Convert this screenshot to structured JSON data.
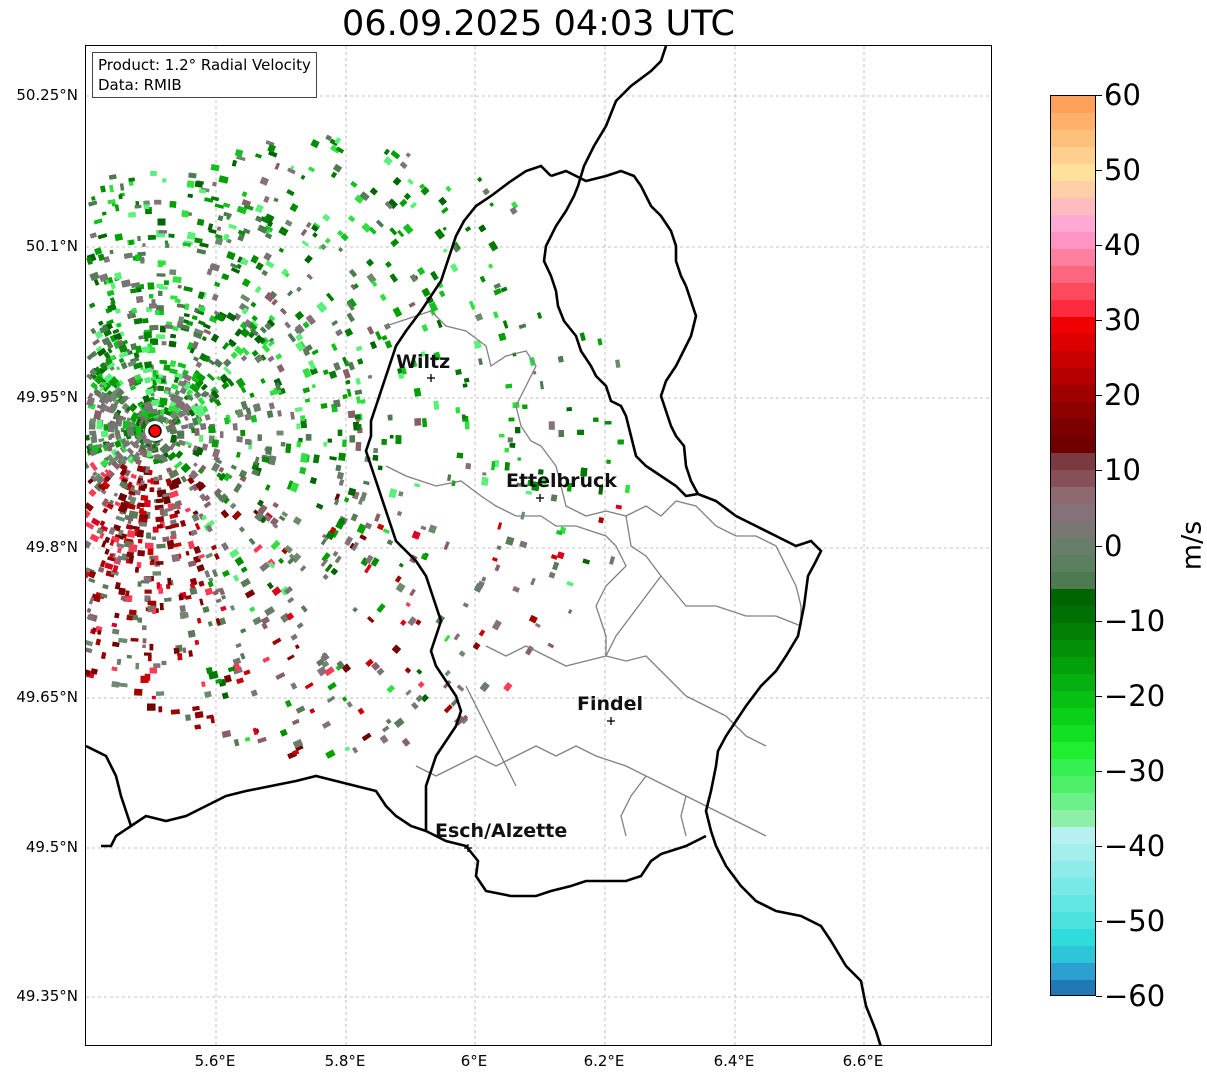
{
  "title": "06.09.2025 04:03 UTC",
  "info_box": {
    "product": "Product: 1.2° Radial Velocity",
    "data": "Data: RMIB"
  },
  "latitude_labels": [
    "50.25°N",
    "50.1°N",
    "49.95°N",
    "49.8°N",
    "49.65°N",
    "49.5°N",
    "49.35°N"
  ],
  "longitude_labels": [
    "5.6°E",
    "5.8°E",
    "6°E",
    "6.2°E",
    "6.4°E",
    "6.6°E"
  ],
  "cities": [
    {
      "name": "Wiltz"
    },
    {
      "name": "Ettelbruck"
    },
    {
      "name": "Findel"
    },
    {
      "name": "Esch/Alzette"
    }
  ],
  "colorbar": {
    "unit": "m/s",
    "ticks": [
      "60",
      "50",
      "40",
      "30",
      "20",
      "10",
      "0",
      "−10",
      "−20",
      "−30",
      "−40",
      "−50",
      "−60"
    ],
    "min": -60,
    "max": 60,
    "colors": {
      "strong_inbound": "#1f77b4",
      "cyan": "#2fdcdc",
      "light_green": "#8ef0a8",
      "green": "#00c800",
      "dark_green": "#006400",
      "gray_green": "#5a7a5a",
      "gray_red": "#8a5a60",
      "dark_red": "#7a0000",
      "red": "#ff0000",
      "pink": "#ff88cc",
      "orange": "#ffa050"
    }
  },
  "map_colors": {
    "border": "#000000",
    "canton_lines": "#808080",
    "radar_site": "#ff0000",
    "grid": "#b0b0b0"
  }
}
